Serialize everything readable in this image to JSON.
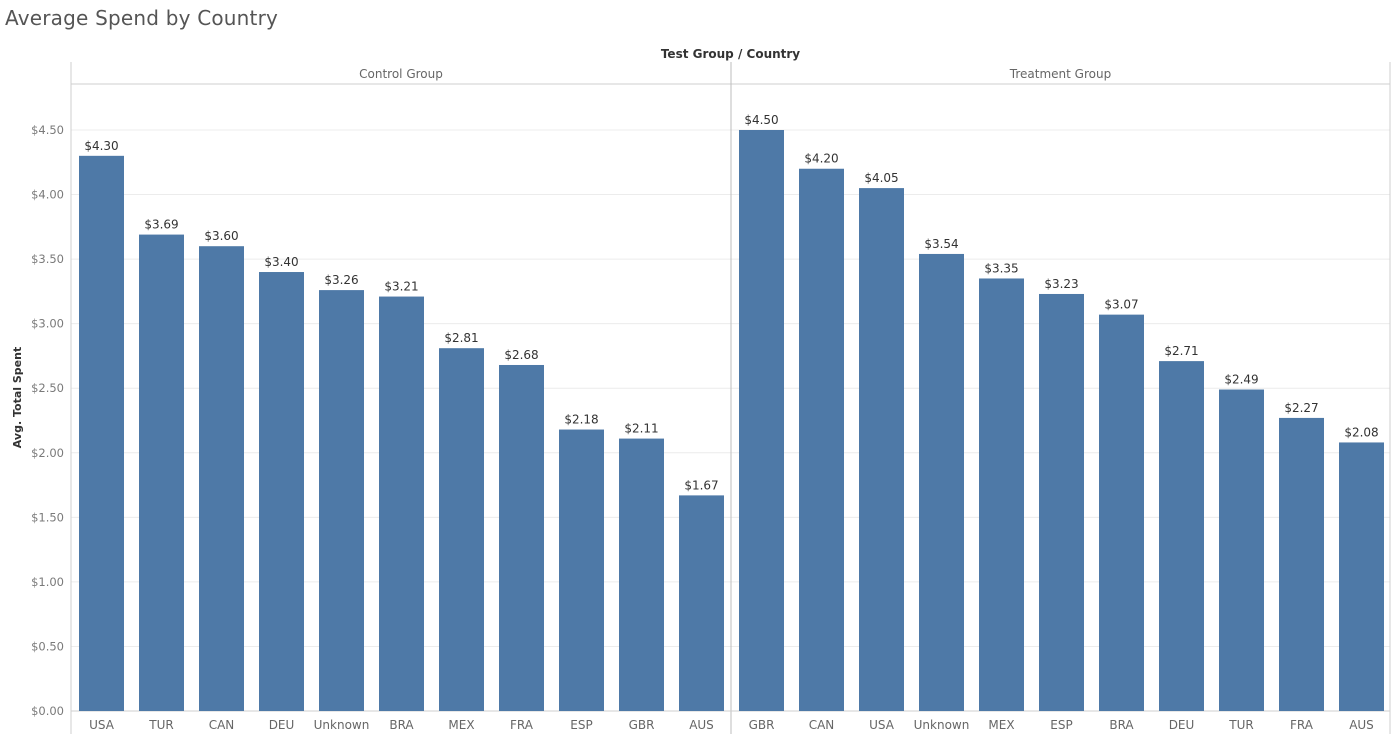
{
  "title": "Average Spend by Country",
  "chart_data": {
    "type": "bar",
    "title": "Average Spend by Country",
    "column_header_title": "Test Group / Country",
    "ylabel": "Avg. Total Spent",
    "ylim": [
      0,
      4.8
    ],
    "yticks": [
      0,
      0.5,
      1.0,
      1.5,
      2.0,
      2.5,
      3.0,
      3.5,
      4.0,
      4.5
    ],
    "ytick_labels": [
      "$0.00",
      "$0.50",
      "$1.00",
      "$1.50",
      "$2.00",
      "$2.50",
      "$3.00",
      "$3.50",
      "$4.00",
      "$4.50"
    ],
    "grid": true,
    "bar_color": "#4e79a7",
    "panels": [
      {
        "name": "Control Group",
        "categories": [
          "USA",
          "TUR",
          "CAN",
          "DEU",
          "Unknown",
          "BRA",
          "MEX",
          "FRA",
          "ESP",
          "GBR",
          "AUS"
        ],
        "values": [
          4.3,
          3.69,
          3.6,
          3.4,
          3.26,
          3.21,
          2.81,
          2.68,
          2.18,
          2.11,
          1.67
        ],
        "labels": [
          "$4.30",
          "$3.69",
          "$3.60",
          "$3.40",
          "$3.26",
          "$3.21",
          "$2.81",
          "$2.68",
          "$2.18",
          "$2.11",
          "$1.67"
        ]
      },
      {
        "name": "Treatment Group",
        "categories": [
          "GBR",
          "CAN",
          "USA",
          "Unknown",
          "MEX",
          "ESP",
          "BRA",
          "DEU",
          "TUR",
          "FRA",
          "AUS"
        ],
        "values": [
          4.5,
          4.2,
          4.05,
          3.54,
          3.35,
          3.23,
          3.07,
          2.71,
          2.49,
          2.27,
          2.08
        ],
        "labels": [
          "$4.50",
          "$4.20",
          "$4.05",
          "$3.54",
          "$3.35",
          "$3.23",
          "$3.07",
          "$2.71",
          "$2.49",
          "$2.27",
          "$2.08"
        ]
      }
    ]
  }
}
